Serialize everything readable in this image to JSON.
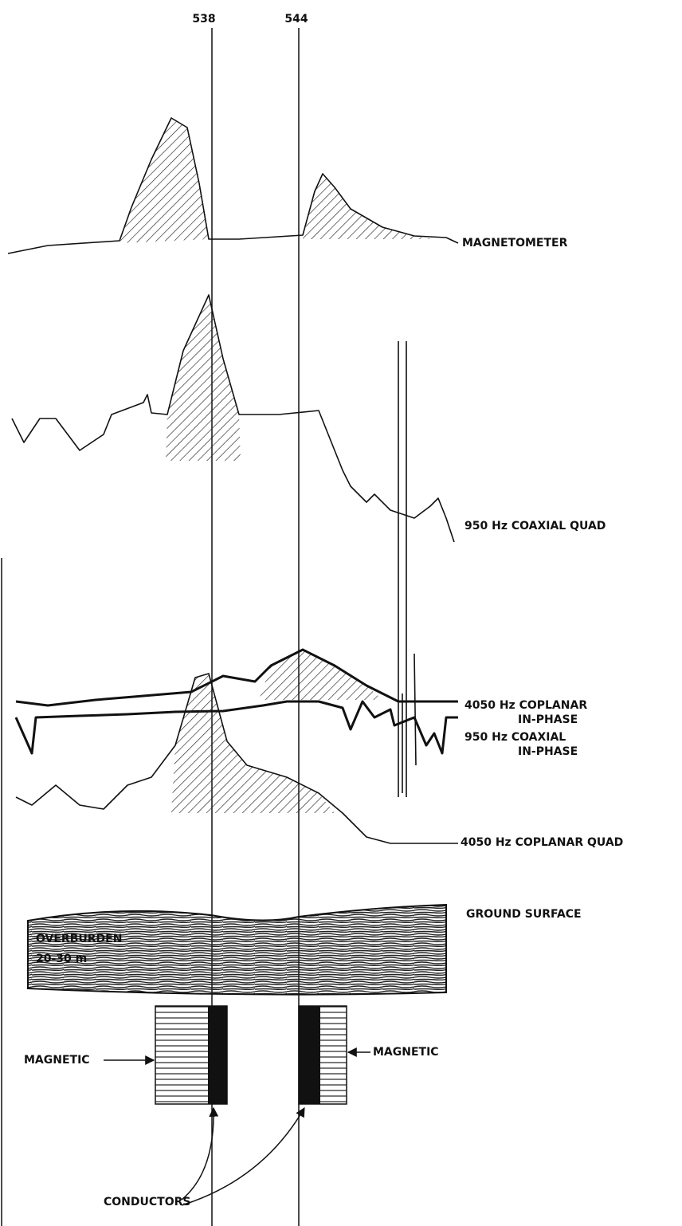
{
  "fiducials": [
    {
      "label": "538"
    },
    {
      "label": "544"
    }
  ],
  "profiles": [
    {
      "lines": [
        "MAGNETOMETER"
      ]
    },
    {
      "lines": [
        "950 Hz COAXIAL QUAD"
      ]
    },
    {
      "lines": [
        "4050 Hz COPLANAR",
        "IN-PHASE"
      ]
    },
    {
      "lines": [
        "950 Hz COAXIAL",
        "IN-PHASE"
      ]
    },
    {
      "lines": [
        "4050 Hz COPLANAR QUAD"
      ]
    }
  ],
  "section": {
    "ground": "GROUND SURFACE",
    "overburden": [
      "OVERBURDEN",
      "20-30 m"
    ],
    "magnetic_left": "MAGNETIC",
    "magnetic_right": "MAGNETIC",
    "conductors": "CONDUCTORS"
  }
}
